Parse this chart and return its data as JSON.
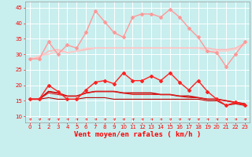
{
  "title": "",
  "xlabel": "Vent moyen/en rafales ( km/h )",
  "background_color": "#c8eeee",
  "grid_color": "#ffffff",
  "xlim": [
    -0.5,
    23.5
  ],
  "ylim": [
    8,
    47
  ],
  "yticks": [
    10,
    15,
    20,
    25,
    30,
    35,
    40,
    45
  ],
  "xticks": [
    0,
    1,
    2,
    3,
    4,
    5,
    6,
    7,
    8,
    9,
    10,
    11,
    12,
    13,
    14,
    15,
    16,
    17,
    18,
    19,
    20,
    21,
    22,
    23
  ],
  "x": [
    0,
    1,
    2,
    3,
    4,
    5,
    6,
    7,
    8,
    9,
    10,
    11,
    12,
    13,
    14,
    15,
    16,
    17,
    18,
    19,
    20,
    21,
    22,
    23
  ],
  "series": [
    {
      "y": [
        28.5,
        28.5,
        34,
        30,
        33,
        32,
        37,
        44,
        40.5,
        37,
        35.5,
        42,
        43,
        43,
        42,
        44.5,
        42,
        38.5,
        35.5,
        31,
        30.5,
        26,
        30,
        34
      ],
      "color": "#ff9999",
      "linewidth": 1.0,
      "marker": "D",
      "markersize": 2.0,
      "zorder": 3
    },
    {
      "y": [
        28.5,
        29.0,
        31.0,
        31.5,
        30.5,
        31.0,
        31.5,
        32.0,
        32.0,
        32.0,
        32.0,
        32.0,
        32.0,
        32.0,
        32.0,
        32.0,
        32.0,
        32.0,
        32.0,
        32.0,
        31.5,
        31.5,
        32.0,
        33.5
      ],
      "color": "#ffbbbb",
      "linewidth": 1.2,
      "marker": null,
      "markersize": 0,
      "zorder": 2
    },
    {
      "y": [
        28.5,
        29.5,
        30.0,
        31.0,
        30.5,
        31.0,
        32.0,
        32.0,
        32.0,
        32.0,
        32.0,
        32.0,
        32.0,
        32.0,
        32.0,
        32.0,
        32.0,
        32.0,
        32.0,
        31.0,
        31.0,
        31.0,
        31.5,
        33.0
      ],
      "color": "#ffcccc",
      "linewidth": 1.0,
      "marker": null,
      "markersize": 0,
      "zorder": 2
    },
    {
      "y": [
        15.5,
        15.5,
        20.0,
        18.0,
        15.5,
        15.5,
        18.5,
        21.0,
        21.5,
        20.5,
        24.0,
        21.5,
        21.5,
        23.0,
        21.5,
        24.0,
        21.0,
        18.5,
        21.5,
        18.0,
        15.5,
        13.5,
        14.5,
        13.5
      ],
      "color": "#ff2222",
      "linewidth": 1.0,
      "marker": "D",
      "markersize": 2.0,
      "zorder": 4
    },
    {
      "y": [
        15.5,
        15.5,
        18.0,
        17.5,
        16.5,
        16.5,
        17.5,
        18.0,
        18.0,
        18.0,
        17.5,
        17.5,
        17.5,
        17.5,
        17.0,
        17.0,
        16.5,
        16.5,
        16.0,
        15.5,
        15.5,
        15.0,
        14.5,
        14.0
      ],
      "color": "#cc0000",
      "linewidth": 1.2,
      "marker": null,
      "markersize": 0,
      "zorder": 3
    },
    {
      "y": [
        15.5,
        15.5,
        17.5,
        17.0,
        16.5,
        16.5,
        17.5,
        18.0,
        18.0,
        18.0,
        17.5,
        17.0,
        17.0,
        17.0,
        17.0,
        17.0,
        16.5,
        16.0,
        16.0,
        15.5,
        15.5,
        15.0,
        14.5,
        14.0
      ],
      "color": "#dd2222",
      "linewidth": 0.8,
      "marker": null,
      "markersize": 0,
      "zorder": 3
    },
    {
      "y": [
        15.5,
        15.5,
        16.0,
        15.5,
        15.5,
        15.5,
        16.0,
        16.0,
        16.0,
        15.5,
        15.5,
        15.5,
        15.5,
        15.5,
        15.5,
        15.5,
        15.5,
        15.5,
        15.5,
        15.0,
        15.0,
        13.5,
        14.0,
        13.5
      ],
      "color": "#bb0000",
      "linewidth": 0.8,
      "marker": null,
      "markersize": 0,
      "zorder": 3
    }
  ],
  "tick_color": "#ff0000",
  "tick_fontsize": 5,
  "xlabel_fontsize": 6.5,
  "xlabel_color": "#ff0000"
}
